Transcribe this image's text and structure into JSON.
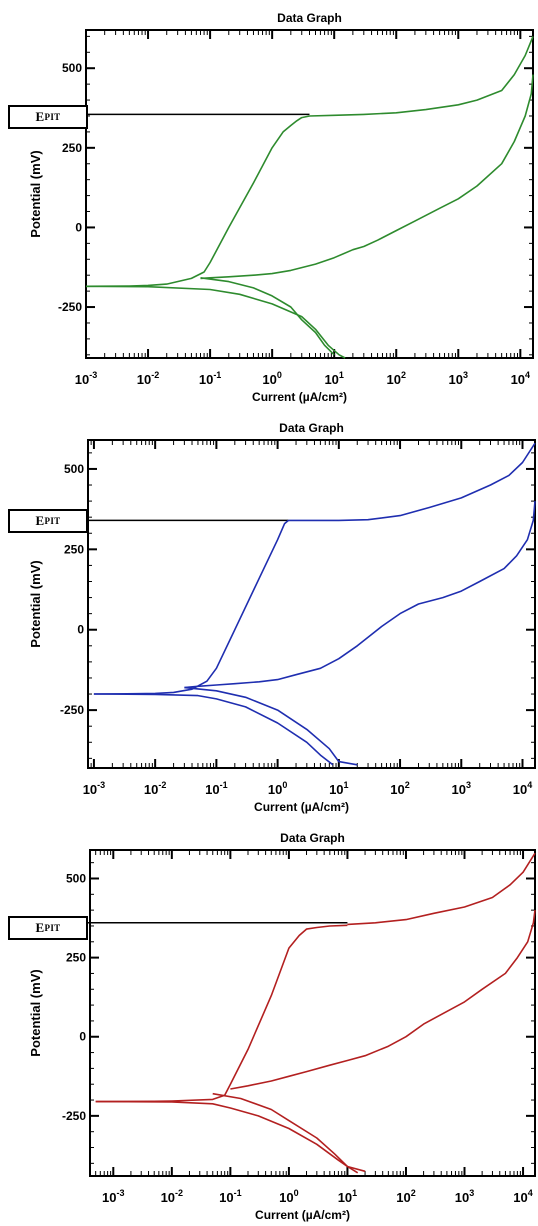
{
  "epit_label": {
    "main": "E",
    "sub": "PIT"
  },
  "chart_data": [
    {
      "type": "line",
      "title": "Data Graph",
      "xlabel": "Current (µA/cm²)",
      "ylabel": "Potential (mV)",
      "x_scale": "log",
      "xlim": [
        0.001,
        16000
      ],
      "ylim": [
        -410,
        620
      ],
      "x_ticks": [
        {
          "v": 0.001,
          "m": "10",
          "e": "-3"
        },
        {
          "v": 0.01,
          "m": "10",
          "e": "-2"
        },
        {
          "v": 0.1,
          "m": "10",
          "e": "-1"
        },
        {
          "v": 1,
          "m": "10",
          "e": "0"
        },
        {
          "v": 10,
          "m": "10",
          "e": "1"
        },
        {
          "v": 100,
          "m": "10",
          "e": "2"
        },
        {
          "v": 1000,
          "m": "10",
          "e": "3"
        },
        {
          "v": 10000,
          "m": "10",
          "e": "4"
        }
      ],
      "y_ticks": [
        {
          "v": 500,
          "label": "500"
        },
        {
          "v": 250,
          "label": "250"
        },
        {
          "v": 0,
          "label": "0"
        },
        {
          "v": -250,
          "label": "-250"
        }
      ],
      "epit_value": 355,
      "color": "#2e8b2e",
      "series": [
        {
          "x": [
            0.001,
            0.005,
            0.01,
            0.02,
            0.05,
            0.08,
            0.1,
            0.2,
            0.5,
            1,
            1.5,
            2,
            2.5,
            3,
            4
          ],
          "y": [
            -185,
            -184,
            -182,
            -178,
            -160,
            -140,
            -110,
            0,
            140,
            250,
            300,
            320,
            335,
            345,
            350
          ]
        },
        {
          "x": [
            4,
            10,
            30,
            100,
            300,
            1000,
            2000,
            5000,
            8000,
            12000,
            16000
          ],
          "y": [
            350,
            352,
            355,
            360,
            370,
            385,
            400,
            430,
            480,
            540,
            600
          ]
        },
        {
          "x": [
            16000,
            15000,
            12000,
            8000,
            5000,
            2000,
            1000,
            500,
            200,
            100,
            50,
            30,
            20,
            10,
            5,
            2,
            1,
            0.5,
            0.2,
            0.1,
            0.07
          ],
          "y": [
            480,
            420,
            350,
            270,
            200,
            130,
            90,
            60,
            20,
            -10,
            -40,
            -60,
            -70,
            -95,
            -115,
            -135,
            -145,
            -150,
            -155,
            -158,
            -160
          ]
        },
        {
          "x": [
            0.001,
            0.01,
            0.1,
            0.3,
            1,
            3,
            5,
            8,
            12,
            15
          ],
          "y": [
            -185,
            -186,
            -195,
            -210,
            -240,
            -280,
            -320,
            -370,
            -400,
            -410
          ]
        },
        {
          "x": [
            0.07,
            0.2,
            0.5,
            1,
            2,
            3,
            5,
            7,
            10
          ],
          "y": [
            -158,
            -170,
            -190,
            -215,
            -250,
            -290,
            -330,
            -370,
            -400
          ]
        }
      ]
    },
    {
      "type": "line",
      "title": "Data Graph",
      "xlabel": "Current (µA/cm²)",
      "ylabel": "Potential (mV)",
      "x_scale": "log",
      "xlim": [
        0.0008,
        16000
      ],
      "ylim": [
        -430,
        590
      ],
      "x_ticks": [
        {
          "v": 0.001,
          "m": "10",
          "e": "-3"
        },
        {
          "v": 0.01,
          "m": "10",
          "e": "-2"
        },
        {
          "v": 0.1,
          "m": "10",
          "e": "-1"
        },
        {
          "v": 1,
          "m": "10",
          "e": "0"
        },
        {
          "v": 10,
          "m": "10",
          "e": "1"
        },
        {
          "v": 100,
          "m": "10",
          "e": "2"
        },
        {
          "v": 1000,
          "m": "10",
          "e": "3"
        },
        {
          "v": 10000,
          "m": "10",
          "e": "4"
        }
      ],
      "y_ticks": [
        {
          "v": 500,
          "label": "500"
        },
        {
          "v": 250,
          "label": "250"
        },
        {
          "v": 0,
          "label": "0"
        },
        {
          "v": -250,
          "label": "-250"
        }
      ],
      "epit_value": 340,
      "color": "#1f2eb0",
      "series": [
        {
          "x": [
            0.001,
            0.005,
            0.01,
            0.02,
            0.04,
            0.07,
            0.1,
            0.2,
            0.5,
            1,
            1.3,
            1.5
          ],
          "y": [
            -200,
            -199,
            -198,
            -195,
            -185,
            -160,
            -120,
            0,
            160,
            280,
            330,
            340
          ]
        },
        {
          "x": [
            1.5,
            10,
            30,
            100,
            300,
            1000,
            3000,
            6000,
            10000,
            16000
          ],
          "y": [
            340,
            340,
            342,
            355,
            380,
            410,
            450,
            480,
            520,
            580
          ]
        },
        {
          "x": [
            16000,
            15000,
            12000,
            8000,
            5000,
            2000,
            1000,
            500,
            200,
            100,
            50,
            20,
            10,
            5,
            2,
            1,
            0.5,
            0.2,
            0.1,
            0.05,
            0.03
          ],
          "y": [
            400,
            340,
            280,
            230,
            190,
            150,
            120,
            100,
            80,
            50,
            10,
            -50,
            -90,
            -120,
            -140,
            -155,
            -162,
            -168,
            -172,
            -176,
            -180
          ]
        },
        {
          "x": [
            0.001,
            0.01,
            0.05,
            0.1,
            0.3,
            1,
            3,
            5,
            8
          ],
          "y": [
            -200,
            -201,
            -205,
            -215,
            -240,
            -290,
            -350,
            -390,
            -420
          ]
        },
        {
          "x": [
            0.03,
            0.1,
            0.3,
            1,
            3,
            7,
            10,
            20
          ],
          "y": [
            -180,
            -190,
            -210,
            -250,
            -310,
            -370,
            -410,
            -420
          ]
        }
      ]
    },
    {
      "type": "line",
      "title": "Data Graph",
      "xlabel": "Current (µA/cm²)",
      "ylabel": "Potential (mV)",
      "x_scale": "log",
      "xlim": [
        0.0004,
        16000
      ],
      "ylim": [
        -440,
        590
      ],
      "x_ticks": [
        {
          "v": 0.001,
          "m": "10",
          "e": "-3"
        },
        {
          "v": 0.01,
          "m": "10",
          "e": "-2"
        },
        {
          "v": 0.1,
          "m": "10",
          "e": "-1"
        },
        {
          "v": 1,
          "m": "10",
          "e": "0"
        },
        {
          "v": 10,
          "m": "10",
          "e": "1"
        },
        {
          "v": 100,
          "m": "10",
          "e": "2"
        },
        {
          "v": 1000,
          "m": "10",
          "e": "3"
        },
        {
          "v": 10000,
          "m": "10",
          "e": "4"
        }
      ],
      "y_ticks": [
        {
          "v": 500,
          "label": "500"
        },
        {
          "v": 250,
          "label": "250"
        },
        {
          "v": 0,
          "label": "0"
        },
        {
          "v": -250,
          "label": "-250"
        }
      ],
      "epit_value": 360,
      "color": "#b32020",
      "series": [
        {
          "x": [
            0.0005,
            0.005,
            0.01,
            0.05,
            0.08,
            0.1,
            0.2,
            0.5,
            1,
            1.5,
            2,
            3,
            5,
            10
          ],
          "y": [
            -205,
            -204,
            -203,
            -198,
            -185,
            -150,
            -40,
            130,
            280,
            320,
            340,
            345,
            350,
            352
          ]
        },
        {
          "x": [
            10,
            30,
            100,
            300,
            1000,
            3000,
            6000,
            10000,
            16000
          ],
          "y": [
            355,
            360,
            370,
            390,
            410,
            440,
            480,
            520,
            580
          ]
        },
        {
          "x": [
            16000,
            15000,
            12000,
            8000,
            5000,
            2000,
            1000,
            500,
            200,
            100,
            50,
            20,
            10,
            5,
            2,
            1,
            0.5,
            0.2,
            0.1
          ],
          "y": [
            400,
            360,
            300,
            250,
            200,
            150,
            110,
            80,
            40,
            0,
            -30,
            -60,
            -75,
            -90,
            -110,
            -125,
            -140,
            -155,
            -165
          ]
        },
        {
          "x": [
            0.0005,
            0.01,
            0.05,
            0.1,
            0.3,
            1,
            3,
            7,
            10,
            15
          ],
          "y": [
            -205,
            -206,
            -212,
            -225,
            -250,
            -290,
            -340,
            -390,
            -410,
            -430
          ]
        },
        {
          "x": [
            0.05,
            0.15,
            0.5,
            1,
            3,
            6,
            10,
            20
          ],
          "y": [
            -180,
            -195,
            -230,
            -265,
            -320,
            -370,
            -410,
            -425
          ]
        }
      ]
    }
  ]
}
